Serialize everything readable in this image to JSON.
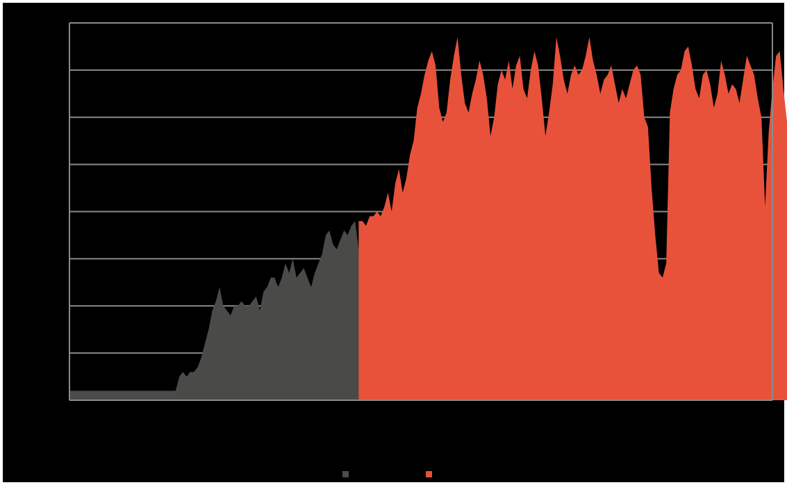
{
  "chart_data": {
    "type": "area",
    "title": "",
    "xlabel": "",
    "ylabel": "",
    "ylim": [
      0,
      8
    ],
    "grid": true,
    "legend_position": "bottom-center",
    "series": [
      {
        "name": "",
        "color": "#4a4a48",
        "values": [
          0.2,
          0.2,
          0.2,
          0.2,
          0.2,
          0.2,
          0.2,
          0.2,
          0.2,
          0.2,
          0.2,
          0.2,
          0.2,
          0.2,
          0.2,
          0.2,
          0.2,
          0.2,
          0.2,
          0.2,
          0.2,
          0.2,
          0.2,
          0.2,
          0.2,
          0.2,
          0.2,
          0.2,
          0.2,
          0.2,
          0.5,
          0.6,
          0.5,
          0.6,
          0.6,
          0.7,
          0.9,
          1.2,
          1.5,
          1.9,
          2.1,
          2.4,
          2.0,
          1.9,
          1.8,
          2.0,
          2.0,
          2.1,
          2.0,
          2.0,
          2.1,
          2.2,
          1.9,
          2.3,
          2.4,
          2.6,
          2.6,
          2.4,
          2.6,
          2.9,
          2.7,
          3.0,
          2.6,
          2.7,
          2.8,
          2.6,
          2.4,
          2.7,
          2.9,
          3.1,
          3.5,
          3.6,
          3.3,
          3.2,
          3.4,
          3.6,
          3.5,
          3.7,
          3.8,
          3.2,
          1.1,
          0.9,
          0.8,
          0.7,
          0.8,
          0.8,
          0.6,
          0.5,
          0.9,
          0.7,
          0.8,
          0.6,
          0.5,
          0.6,
          0.5,
          0.6,
          0.7,
          0.8,
          0.7,
          0.6,
          0.5,
          0.6,
          0.7,
          0.8,
          0.6,
          0.7,
          0.9,
          0.6,
          0.5,
          0.6,
          0.9,
          1.0,
          0.8,
          0.6,
          0.5,
          0.6,
          0.7,
          0.9,
          1.0,
          0.8,
          0.6,
          0.7,
          0.6,
          0.9,
          0.7,
          0.5,
          0.6,
          0.8,
          0.7,
          0.6,
          0.4,
          0.3,
          0.5,
          0.5,
          0.7,
          0.5,
          0.4,
          0.5,
          0.8,
          0.6,
          0.5,
          0.6,
          0.3,
          0.2,
          0.1,
          0.0,
          0.5,
          0.6,
          0.7,
          0.8,
          0.7,
          0.6,
          0.7,
          0.9,
          0.8,
          0.6,
          0.4,
          0.5,
          0.7,
          0.6,
          0.5,
          0.6,
          0.7,
          0.5,
          0.4,
          0.5,
          0.6,
          0.7,
          0.9,
          1.1,
          1.0,
          0.8,
          0.6,
          0.5,
          0.6,
          0.8,
          1.1,
          1.2,
          0.9,
          0.5,
          0.2,
          0.4,
          0.8,
          0.6,
          0.7,
          0.5,
          0.7,
          0.6,
          0.5,
          0.6,
          0.7,
          0.6,
          0.5
        ]
      },
      {
        "name": "",
        "color": "#e8523b",
        "values": [
          null,
          null,
          null,
          null,
          null,
          null,
          null,
          null,
          null,
          null,
          null,
          null,
          null,
          null,
          null,
          null,
          null,
          null,
          null,
          null,
          null,
          null,
          null,
          null,
          null,
          null,
          null,
          null,
          null,
          null,
          null,
          null,
          null,
          null,
          null,
          null,
          null,
          null,
          null,
          null,
          null,
          null,
          null,
          null,
          null,
          null,
          null,
          null,
          null,
          null,
          null,
          null,
          null,
          null,
          null,
          null,
          null,
          null,
          null,
          null,
          null,
          null,
          null,
          null,
          null,
          null,
          null,
          null,
          null,
          null,
          null,
          null,
          null,
          null,
          null,
          null,
          null,
          null,
          null,
          3.8,
          3.8,
          3.7,
          3.9,
          3.9,
          4.0,
          3.9,
          4.1,
          4.4,
          4.0,
          4.6,
          4.9,
          4.4,
          4.7,
          5.2,
          5.5,
          6.2,
          6.5,
          6.9,
          7.2,
          7.4,
          7.1,
          6.2,
          5.9,
          6.1,
          6.8,
          7.3,
          7.7,
          6.9,
          6.3,
          6.1,
          6.5,
          6.8,
          7.2,
          6.9,
          6.4,
          5.6,
          6.0,
          6.7,
          7.0,
          6.8,
          7.2,
          6.6,
          7.1,
          7.3,
          6.6,
          6.4,
          7.0,
          7.4,
          7.1,
          6.4,
          5.6,
          6.1,
          6.7,
          7.7,
          7.3,
          6.8,
          6.5,
          6.9,
          7.1,
          6.9,
          7.0,
          7.3,
          7.7,
          7.2,
          6.9,
          6.5,
          6.8,
          6.9,
          7.1,
          6.7,
          6.3,
          6.6,
          6.4,
          6.7,
          7.0,
          7.1,
          6.9,
          6.0,
          5.8,
          4.5,
          3.5,
          2.7,
          2.6,
          2.9,
          6.1,
          6.6,
          6.9,
          7.0,
          7.4,
          7.5,
          7.1,
          6.6,
          6.4,
          6.9,
          7.0,
          6.7,
          6.2,
          6.5,
          7.2,
          6.9,
          6.5,
          6.7,
          6.6,
          6.3,
          6.8,
          7.3,
          7.1,
          6.9,
          6.4,
          6.0,
          4.1,
          5.7,
          6.6,
          7.3,
          7.4,
          6.6,
          5.9,
          5.4,
          6.3,
          6.8,
          6.3,
          5.9,
          6.6,
          6.8,
          6.1,
          5.6
        ]
      }
    ]
  }
}
